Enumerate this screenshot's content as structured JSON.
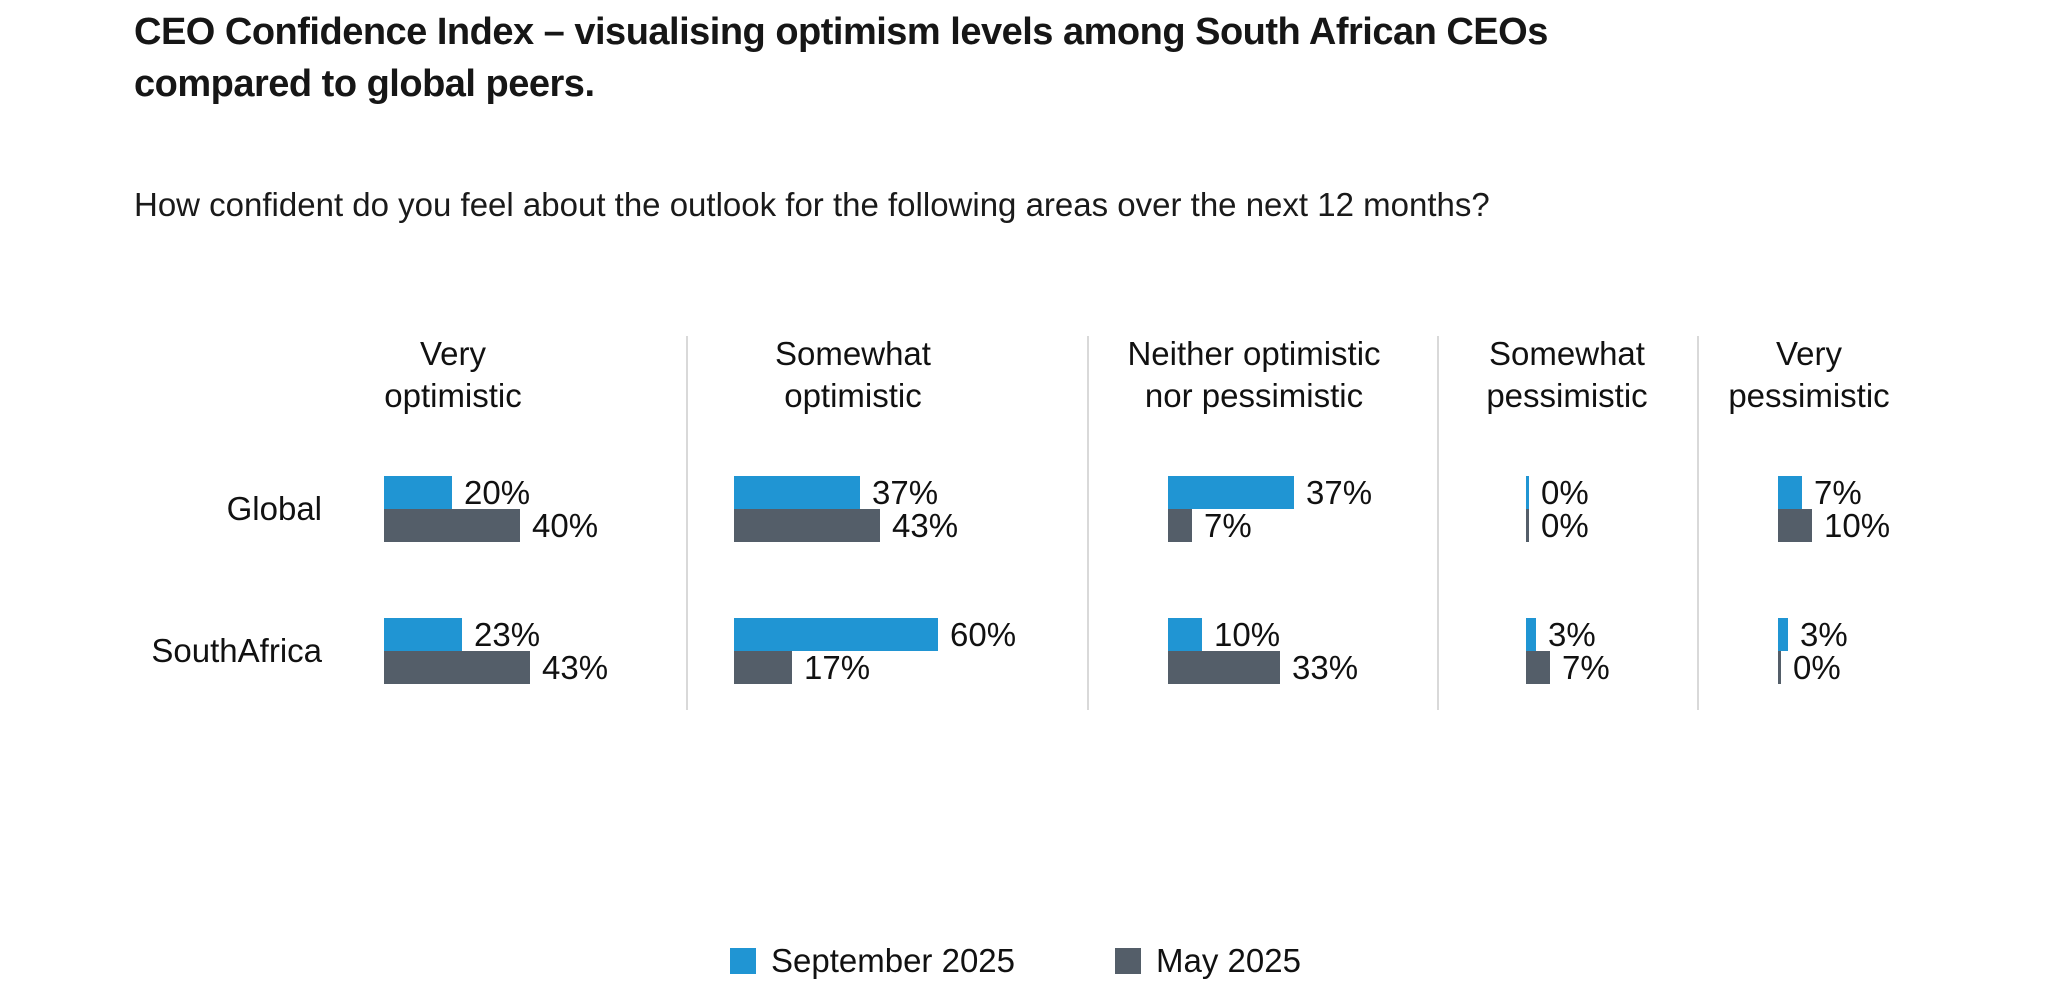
{
  "title": {
    "lines": [
      "CEO Confidence Index – visualising optimism levels among South African CEOs",
      "compared to global peers."
    ]
  },
  "subtitle": "How confident do you feel about the outlook for the following areas over the next 12 months?",
  "colors": {
    "september": "#2095d3",
    "may": "#545e69",
    "divider": "#d9d9d9",
    "text": "#111111"
  },
  "columns": [
    {
      "label": "Very\noptimistic"
    },
    {
      "label": "Somewhat\noptimistic"
    },
    {
      "label": "Neither optimistic\nnor pessimistic"
    },
    {
      "label": "Somewhat\npessimistic"
    },
    {
      "label": "Very\npessimistic"
    }
  ],
  "rows": [
    {
      "label": "Global"
    },
    {
      "label": "SouthAfrica"
    }
  ],
  "legend": {
    "items": [
      {
        "label": "September 2025",
        "series": "september"
      },
      {
        "label": "May 2025",
        "series": "may"
      }
    ]
  },
  "chart_data": {
    "type": "bar",
    "orientation": "horizontal",
    "unit": "%",
    "title": "CEO Confidence Index – visualising optimism levels among South African CEOs compared to global peers.",
    "subtitle": "How confident do you feel about the outlook for the following areas over the next 12 months?",
    "categories": [
      "Very optimistic",
      "Somewhat optimistic",
      "Neither optimistic nor pessimistic",
      "Somewhat pessimistic",
      "Very pessimistic"
    ],
    "groups": [
      "Global",
      "SouthAfrica"
    ],
    "series": [
      {
        "name": "September 2025",
        "color": "#2095d3",
        "values": {
          "Global": [
            20,
            37,
            37,
            0,
            7
          ],
          "SouthAfrica": [
            23,
            60,
            10,
            3,
            3
          ]
        }
      },
      {
        "name": "May 2025",
        "color": "#545e69",
        "values": {
          "Global": [
            40,
            43,
            7,
            0,
            10
          ],
          "SouthAfrica": [
            43,
            17,
            33,
            7,
            0
          ]
        }
      }
    ],
    "value_label_format": "{value}%",
    "xlim": [
      0,
      60
    ],
    "grid": false,
    "legend_position": "bottom"
  }
}
